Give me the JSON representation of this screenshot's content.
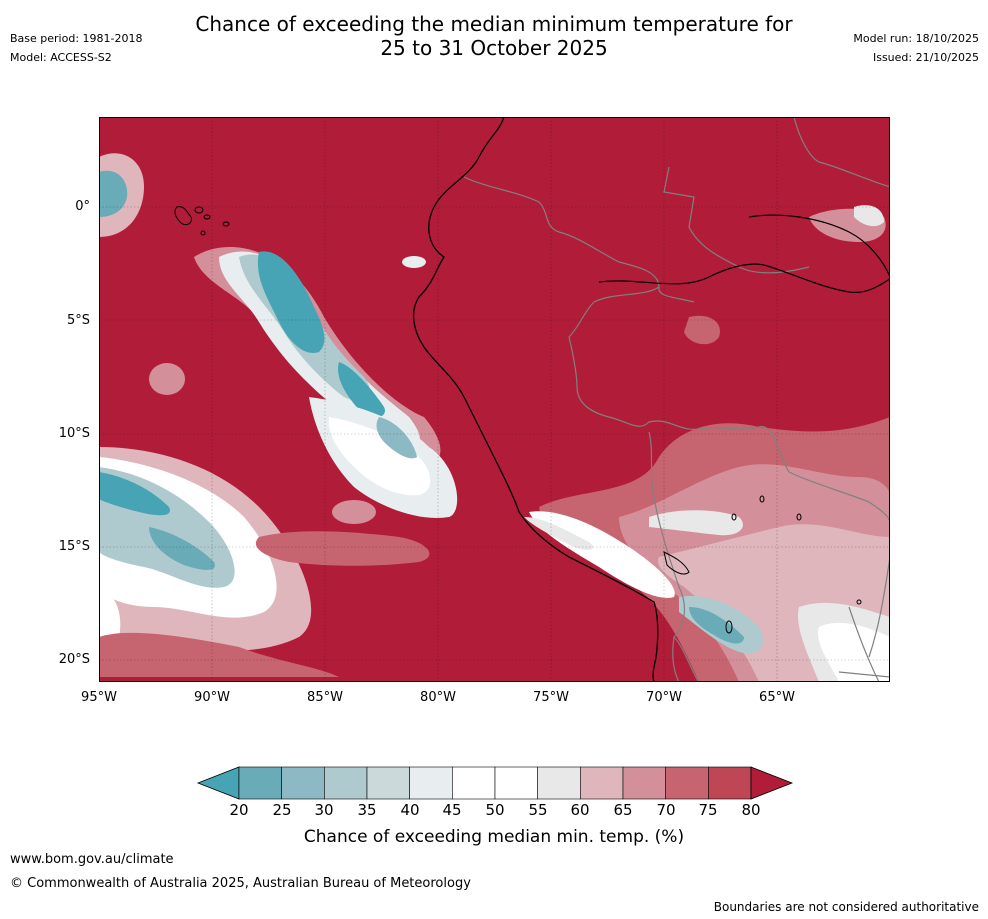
{
  "header": {
    "title_line1": "Chance of exceeding the median minimum temperature for",
    "title_line2": "25 to 31 October 2025",
    "base_period": "Base period: 1981-2018",
    "model": "Model: ACCESS-S2",
    "model_run": "Model run: 18/10/2025",
    "issued": "Issued: 21/10/2025"
  },
  "map": {
    "region": "Western South America and eastern Pacific",
    "lat_labels": [
      "0°",
      "5°S",
      "10°S",
      "15°S",
      "20°S"
    ],
    "lon_labels": [
      "95°W",
      "90°W",
      "85°W",
      "80°W",
      "75°W",
      "70°W",
      "65°W"
    ],
    "background_color": "#B11C38"
  },
  "legend": {
    "ticks": [
      "20",
      "25",
      "30",
      "35",
      "40",
      "45",
      "50",
      "55",
      "60",
      "65",
      "70",
      "75",
      "80"
    ],
    "colors": [
      "#47A4B5",
      "#6AABB8",
      "#8DB9C4",
      "#AECACE",
      "#CBD9DB",
      "#E8EEF0",
      "#FFFFFF",
      "#FFFFFF",
      "#E8E8E8",
      "#DEB6BC",
      "#D4909A",
      "#C6646F",
      "#BE4655",
      "#B11C38"
    ],
    "label": "Chance of exceeding median min. temp. (%)"
  },
  "footer": {
    "website": "www.bom.gov.au/climate",
    "copyright": "© Commonwealth of Australia 2025, Australian Bureau of Meteorology",
    "disclaimer": "Boundaries are not considered authoritative"
  }
}
